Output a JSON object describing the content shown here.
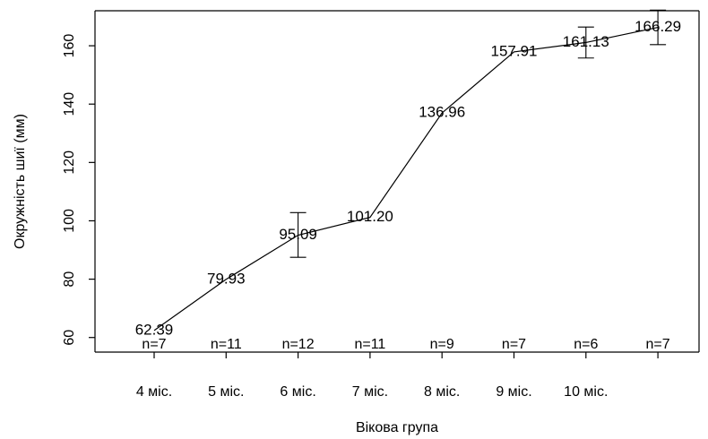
{
  "chart_data": {
    "type": "line",
    "title": "",
    "xlabel": "Вікова група",
    "ylabel": "Окружність шиї (мм)",
    "ylim": [
      55,
      172
    ],
    "yticks": [
      60,
      80,
      100,
      120,
      140,
      160
    ],
    "categories": [
      "4 міс.",
      "5 міс.",
      "6 міс.",
      "7 міс.",
      "8 міс.",
      "9 міс.",
      "10 міс.",
      ""
    ],
    "values": [
      62.39,
      79.93,
      95.09,
      101.2,
      136.96,
      157.91,
      161.13,
      166.29
    ],
    "value_labels": [
      "62.39",
      "79.93",
      "95.09",
      "101.20",
      "136.96",
      "157.91",
      "161.13",
      "166.29"
    ],
    "error_low": [
      62.39,
      79.93,
      87.5,
      101.2,
      136.96,
      157.91,
      155.8,
      160.4
    ],
    "error_high": [
      62.39,
      79.93,
      102.8,
      101.2,
      136.96,
      157.91,
      166.4,
      172.2
    ],
    "n_labels": [
      "n=7",
      "n=11",
      "n=12",
      "n=11",
      "n=9",
      "n=7",
      "n=6",
      "n=7"
    ],
    "grid": false,
    "legend": "none",
    "line_color": "#000000"
  }
}
